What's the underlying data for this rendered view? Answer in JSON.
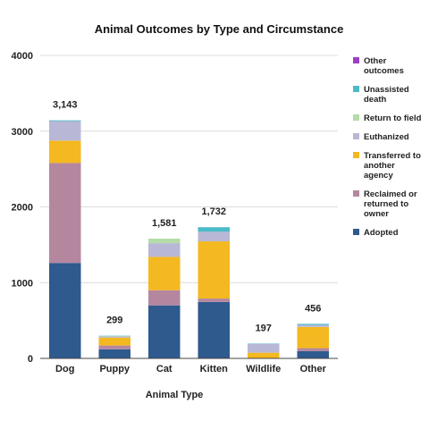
{
  "chart_data": {
    "type": "bar",
    "stacked": true,
    "title": "Animal Outcomes by Type and Circumstance",
    "xlabel": "Animal Type",
    "ylabel": "",
    "ylim": [
      0,
      4000
    ],
    "yticks": [
      0,
      1000,
      2000,
      3000,
      4000
    ],
    "grid": true,
    "legend_position": "right",
    "categories": [
      "Dog",
      "Puppy",
      "Cat",
      "Kitten",
      "Wildlife",
      "Other"
    ],
    "totals": [
      "3,143",
      "299",
      "1,581",
      "1,732",
      "197",
      "456"
    ],
    "series": [
      {
        "name": "Adopted",
        "color": "#2e5a8e",
        "values": [
          1260,
          120,
          700,
          745,
          0,
          95
        ]
      },
      {
        "name": "Reclaimed or returned to owner",
        "color": "#b5879f",
        "values": [
          1320,
          50,
          200,
          45,
          5,
          40
        ]
      },
      {
        "name": "Transferred to another agency",
        "color": "#f4b820",
        "values": [
          295,
          105,
          440,
          755,
          70,
          280
        ]
      },
      {
        "name": "Euthanized",
        "color": "#b8b8d6",
        "values": [
          258,
          14,
          181,
          127,
          117,
          26
        ]
      },
      {
        "name": "Return to field",
        "color": "#b4dca8",
        "values": [
          0,
          5,
          60,
          0,
          0,
          0
        ]
      },
      {
        "name": "Unassisted death",
        "color": "#4cbac8",
        "values": [
          10,
          5,
          0,
          60,
          5,
          15
        ]
      },
      {
        "name": "Other outcomes",
        "color": "#9b3fc4",
        "values": [
          0,
          0,
          0,
          0,
          0,
          0
        ]
      }
    ],
    "legend": [
      {
        "lines": [
          "Other",
          "outcomes"
        ],
        "color": "#9b3fc4"
      },
      {
        "lines": [
          "Unassisted",
          "death"
        ],
        "color": "#4cbac8"
      },
      {
        "lines": [
          "Return to field"
        ],
        "color": "#b4dca8"
      },
      {
        "lines": [
          "Euthanized"
        ],
        "color": "#b8b8d6"
      },
      {
        "lines": [
          "Transferred to",
          "another",
          "agency"
        ],
        "color": "#f4b820"
      },
      {
        "lines": [
          "Reclaimed or",
          "returned to",
          "owner"
        ],
        "color": "#b5879f"
      },
      {
        "lines": [
          "Adopted"
        ],
        "color": "#2e5a8e"
      }
    ]
  }
}
